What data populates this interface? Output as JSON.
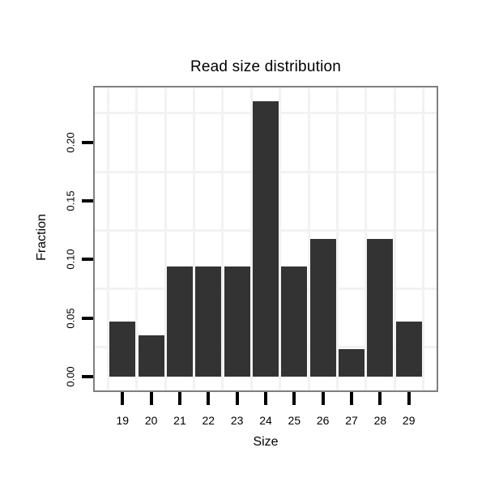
{
  "chart_data": {
    "type": "bar",
    "title": "Read size distribution",
    "xlabel": "Size",
    "ylabel": "Fraction",
    "categories": [
      "19",
      "20",
      "21",
      "22",
      "23",
      "24",
      "25",
      "26",
      "27",
      "28",
      "29"
    ],
    "values": [
      0.0471,
      0.0353,
      0.0941,
      0.0941,
      0.0941,
      0.2353,
      0.0941,
      0.1176,
      0.0235,
      0.1176,
      0.0471
    ],
    "y_tick_labels": [
      "0.00",
      "0.05",
      "0.10",
      "0.15",
      "0.20"
    ],
    "y_tick_values": [
      0,
      0.05,
      0.1,
      0.15,
      0.2
    ],
    "y_minor_grid_values": [
      0.025,
      0.075,
      0.125,
      0.175,
      0.225
    ],
    "ylim": [
      -0.0118,
      0.2471
    ],
    "grid": "midpoint-gridlines-only",
    "legend": "none",
    "colors": {
      "bar": "#333333",
      "panel_border": "#7f7f7f",
      "grid": "#f2f2f2",
      "text": "#000000",
      "background": "#ffffff"
    }
  }
}
